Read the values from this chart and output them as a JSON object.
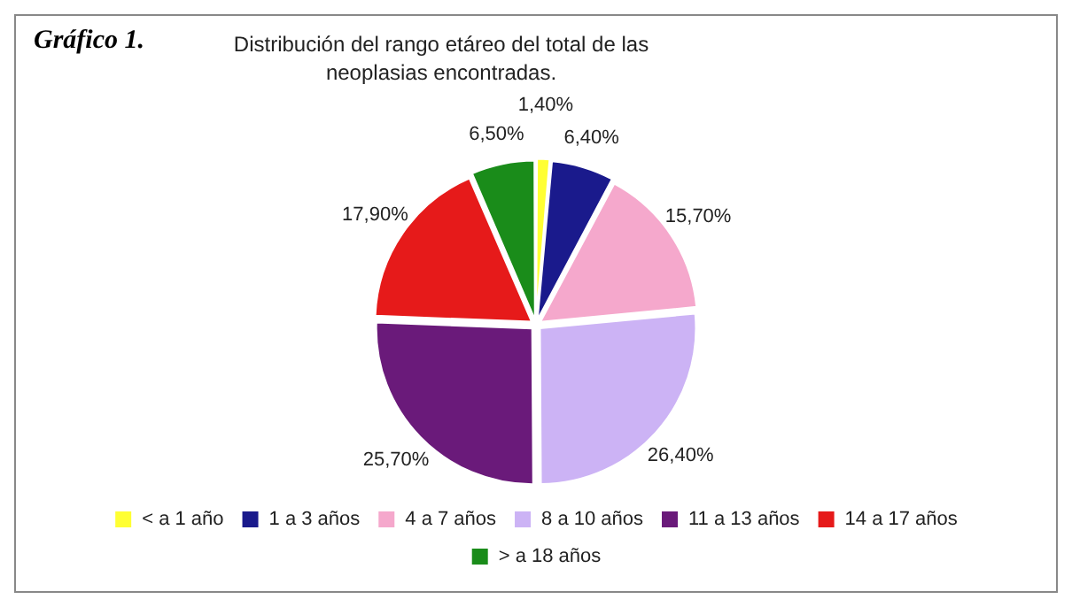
{
  "chart_data": {
    "type": "pie",
    "title": "Distribución del rango etáreo del total de las neoplasias encontradas.",
    "annotations": [
      "Gráfico 1."
    ],
    "categories": [
      "< a 1 año",
      "1 a 3 años",
      "4 a 7 años",
      "8 a 10 años",
      "11 a 13 años",
      "14 a 17 años",
      "> a 18 años"
    ],
    "values": [
      1.4,
      6.4,
      15.7,
      26.4,
      25.7,
      17.9,
      6.5
    ],
    "value_labels": [
      "1,40%",
      "6,40%",
      "15,70%",
      "26,40%",
      "25,70%",
      "17,90%",
      "6,50%"
    ],
    "colors": [
      "#ffff33",
      "#1a1a8c",
      "#f5a8cc",
      "#ccb3f5",
      "#6a1a7a",
      "#e61a1a",
      "#1a8c1a"
    ],
    "legend": "bottom"
  }
}
